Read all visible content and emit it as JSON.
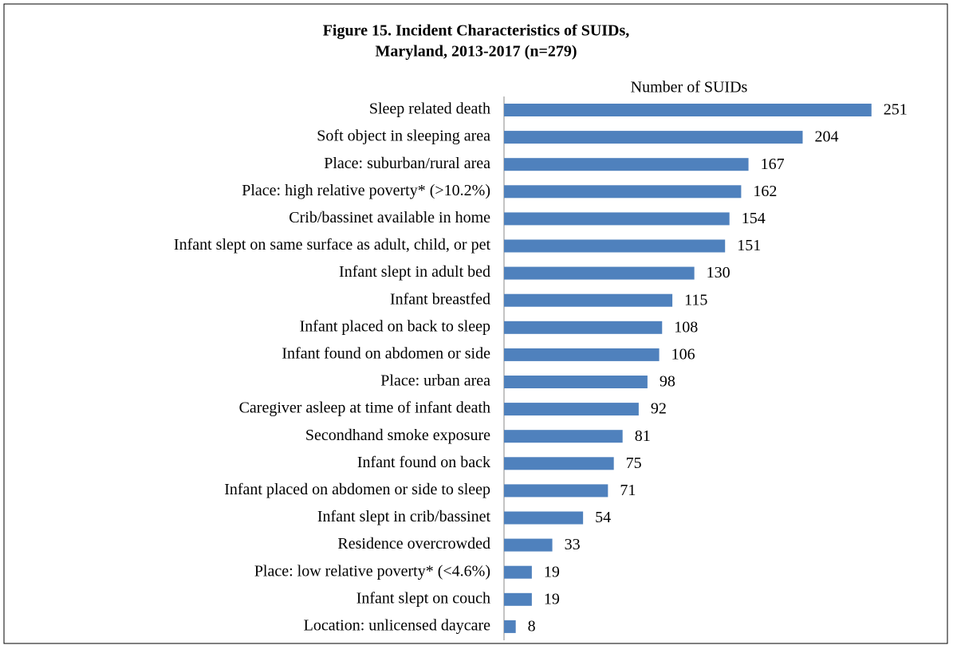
{
  "chart_data": {
    "type": "bar",
    "orientation": "horizontal",
    "title": [
      "Figure 15. Incident Characteristics of SUIDs,",
      "Maryland, 2013-2017 (n=279)"
    ],
    "x_label": "Number of SUIDs",
    "categories": [
      "Sleep related death",
      "Soft object in sleeping area",
      "Place: suburban/rural area",
      "Place: high relative poverty* (>10.2%)",
      "Crib/bassinet available in home",
      "Infant slept on same surface as adult, child, or pet",
      "Infant slept in adult bed",
      "Infant breastfed",
      "Infant placed on back to sleep",
      "Infant found on abdomen or side",
      "Place: urban area",
      "Caregiver asleep at time of infant death",
      "Secondhand smoke exposure",
      "Infant found on back",
      "Infant placed on abdomen or side to sleep",
      "Infant slept in crib/bassinet",
      "Residence overcrowded",
      "Place: low relative poverty* (<4.6%)",
      "Infant slept on couch",
      "Location: unlicensed daycare"
    ],
    "values": [
      251,
      204,
      167,
      162,
      154,
      151,
      130,
      115,
      108,
      106,
      98,
      92,
      81,
      75,
      71,
      54,
      33,
      19,
      19,
      8
    ],
    "color": "#4f81bd",
    "xlim": [
      0,
      280
    ]
  }
}
